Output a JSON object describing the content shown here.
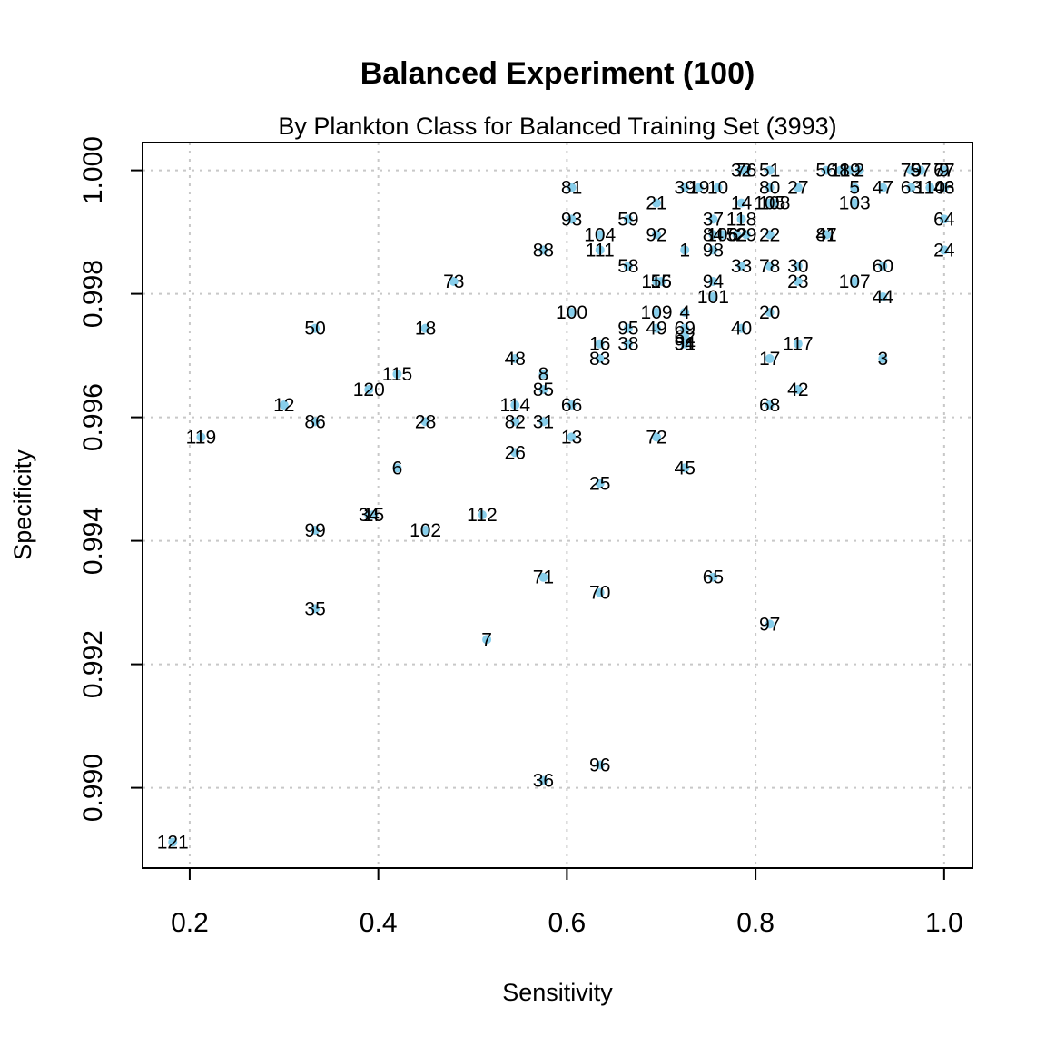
{
  "chart_data": {
    "type": "scatter",
    "title": "Balanced Experiment (100)",
    "subtitle": "By Plankton Class for Balanced Training Set (3993)",
    "xlabel": "Sensitivity",
    "ylabel": "Specificity",
    "xlim": [
      0.15,
      1.03
    ],
    "ylim": [
      0.9887,
      1.00045
    ],
    "xticks": [
      0.2,
      0.4,
      0.6,
      0.8,
      1.0
    ],
    "xtick_labels": [
      "0.2",
      "0.4",
      "0.6",
      "0.8",
      "1.0"
    ],
    "yticks": [
      0.99,
      0.992,
      0.994,
      0.996,
      0.998,
      1.0
    ],
    "ytick_labels": [
      "0.990",
      "0.992",
      "0.994",
      "0.996",
      "0.998",
      "1.000"
    ],
    "grid": true,
    "point_color": "#87ceeb",
    "points": [
      {
        "label": "121",
        "x": 0.182,
        "y": 0.98912
      },
      {
        "label": "119",
        "x": 0.212,
        "y": 0.99568
      },
      {
        "label": "12",
        "x": 0.3,
        "y": 0.9962
      },
      {
        "label": "50",
        "x": 0.333,
        "y": 0.99744
      },
      {
        "label": "86",
        "x": 0.333,
        "y": 0.99593
      },
      {
        "label": "99",
        "x": 0.333,
        "y": 0.99417
      },
      {
        "label": "35",
        "x": 0.333,
        "y": 0.9929
      },
      {
        "label": "120",
        "x": 0.39,
        "y": 0.99645
      },
      {
        "label": "34",
        "x": 0.39,
        "y": 0.99442
      },
      {
        "label": "15",
        "x": 0.395,
        "y": 0.99442
      },
      {
        "label": "115",
        "x": 0.42,
        "y": 0.9967
      },
      {
        "label": "6",
        "x": 0.42,
        "y": 0.99518
      },
      {
        "label": "18",
        "x": 0.45,
        "y": 0.99744
      },
      {
        "label": "28",
        "x": 0.45,
        "y": 0.99593
      },
      {
        "label": "102",
        "x": 0.45,
        "y": 0.99417
      },
      {
        "label": "73",
        "x": 0.48,
        "y": 0.9982
      },
      {
        "label": "112",
        "x": 0.51,
        "y": 0.99442
      },
      {
        "label": "7",
        "x": 0.515,
        "y": 0.9924
      },
      {
        "label": "48",
        "x": 0.545,
        "y": 0.99695
      },
      {
        "label": "114",
        "x": 0.545,
        "y": 0.9962
      },
      {
        "label": "82",
        "x": 0.545,
        "y": 0.99593
      },
      {
        "label": "26",
        "x": 0.545,
        "y": 0.99543
      },
      {
        "label": "88",
        "x": 0.575,
        "y": 0.99871
      },
      {
        "label": "8",
        "x": 0.575,
        "y": 0.9967
      },
      {
        "label": "85",
        "x": 0.575,
        "y": 0.99645
      },
      {
        "label": "31",
        "x": 0.575,
        "y": 0.99593
      },
      {
        "label": "71",
        "x": 0.575,
        "y": 0.99341
      },
      {
        "label": "36",
        "x": 0.575,
        "y": 0.99012
      },
      {
        "label": "81",
        "x": 0.605,
        "y": 0.99972
      },
      {
        "label": "93",
        "x": 0.605,
        "y": 0.99921
      },
      {
        "label": "100",
        "x": 0.605,
        "y": 0.9977
      },
      {
        "label": "66",
        "x": 0.605,
        "y": 0.9962
      },
      {
        "label": "13",
        "x": 0.605,
        "y": 0.99568
      },
      {
        "label": "104",
        "x": 0.635,
        "y": 0.99896
      },
      {
        "label": "111",
        "x": 0.635,
        "y": 0.99871
      },
      {
        "label": "16",
        "x": 0.635,
        "y": 0.99719
      },
      {
        "label": "83",
        "x": 0.635,
        "y": 0.99695
      },
      {
        "label": "25",
        "x": 0.635,
        "y": 0.99493
      },
      {
        "label": "70",
        "x": 0.635,
        "y": 0.99316
      },
      {
        "label": "96",
        "x": 0.635,
        "y": 0.99037
      },
      {
        "label": "59",
        "x": 0.665,
        "y": 0.99921
      },
      {
        "label": "58",
        "x": 0.665,
        "y": 0.99845
      },
      {
        "label": "95",
        "x": 0.665,
        "y": 0.99744
      },
      {
        "label": "38",
        "x": 0.665,
        "y": 0.99719
      },
      {
        "label": "21",
        "x": 0.695,
        "y": 0.99947
      },
      {
        "label": "92",
        "x": 0.695,
        "y": 0.99896
      },
      {
        "label": "116",
        "x": 0.695,
        "y": 0.9982
      },
      {
        "label": "55",
        "x": 0.7,
        "y": 0.9982
      },
      {
        "label": "109",
        "x": 0.695,
        "y": 0.9977
      },
      {
        "label": "49",
        "x": 0.695,
        "y": 0.99744
      },
      {
        "label": "72",
        "x": 0.695,
        "y": 0.99568
      },
      {
        "label": "1",
        "x": 0.725,
        "y": 0.99871
      },
      {
        "label": "4",
        "x": 0.725,
        "y": 0.9977
      },
      {
        "label": "69",
        "x": 0.725,
        "y": 0.99744
      },
      {
        "label": "62",
        "x": 0.725,
        "y": 0.9973
      },
      {
        "label": "54",
        "x": 0.725,
        "y": 0.99719
      },
      {
        "label": "91",
        "x": 0.725,
        "y": 0.99719
      },
      {
        "label": "45",
        "x": 0.725,
        "y": 0.99518
      },
      {
        "label": "39",
        "x": 0.725,
        "y": 0.99972
      },
      {
        "label": "19",
        "x": 0.74,
        "y": 0.99972
      },
      {
        "label": "10",
        "x": 0.76,
        "y": 0.99972
      },
      {
        "label": "37",
        "x": 0.755,
        "y": 0.99921
      },
      {
        "label": "84",
        "x": 0.755,
        "y": 0.99896
      },
      {
        "label": "98",
        "x": 0.755,
        "y": 0.99871
      },
      {
        "label": "94",
        "x": 0.755,
        "y": 0.9982
      },
      {
        "label": "101",
        "x": 0.755,
        "y": 0.99795
      },
      {
        "label": "65",
        "x": 0.755,
        "y": 0.99341
      },
      {
        "label": "106",
        "x": 0.765,
        "y": 0.99896
      },
      {
        "label": "118",
        "x": 0.785,
        "y": 0.99921
      },
      {
        "label": "52",
        "x": 0.78,
        "y": 0.99896
      },
      {
        "label": "29",
        "x": 0.79,
        "y": 0.99896
      },
      {
        "label": "33",
        "x": 0.785,
        "y": 0.99845
      },
      {
        "label": "40",
        "x": 0.785,
        "y": 0.99744
      },
      {
        "label": "32",
        "x": 0.785,
        "y": 1.0
      },
      {
        "label": "76",
        "x": 0.79,
        "y": 1.0
      },
      {
        "label": "14",
        "x": 0.785,
        "y": 0.99947
      },
      {
        "label": "51",
        "x": 0.815,
        "y": 1.0
      },
      {
        "label": "80",
        "x": 0.815,
        "y": 0.99972
      },
      {
        "label": "105",
        "x": 0.815,
        "y": 0.99947
      },
      {
        "label": "108",
        "x": 0.82,
        "y": 0.99947
      },
      {
        "label": "22",
        "x": 0.815,
        "y": 0.99896
      },
      {
        "label": "78",
        "x": 0.815,
        "y": 0.99845
      },
      {
        "label": "20",
        "x": 0.815,
        "y": 0.9977
      },
      {
        "label": "17",
        "x": 0.815,
        "y": 0.99695
      },
      {
        "label": "68",
        "x": 0.815,
        "y": 0.9962
      },
      {
        "label": "97",
        "x": 0.815,
        "y": 0.99265
      },
      {
        "label": "27",
        "x": 0.845,
        "y": 0.99972
      },
      {
        "label": "30",
        "x": 0.845,
        "y": 0.99845
      },
      {
        "label": "23",
        "x": 0.845,
        "y": 0.9982
      },
      {
        "label": "117",
        "x": 0.845,
        "y": 0.99719
      },
      {
        "label": "42",
        "x": 0.845,
        "y": 0.99645
      },
      {
        "label": "87",
        "x": 0.875,
        "y": 0.99896
      },
      {
        "label": "41",
        "x": 0.875,
        "y": 0.99896
      },
      {
        "label": "56",
        "x": 0.875,
        "y": 1.0
      },
      {
        "label": "11",
        "x": 0.89,
        "y": 1.0
      },
      {
        "label": "89",
        "x": 0.9,
        "y": 1.0
      },
      {
        "label": "2",
        "x": 0.91,
        "y": 1.0
      },
      {
        "label": "5",
        "x": 0.905,
        "y": 0.99972
      },
      {
        "label": "103",
        "x": 0.905,
        "y": 0.99947
      },
      {
        "label": "107",
        "x": 0.905,
        "y": 0.9982
      },
      {
        "label": "47",
        "x": 0.935,
        "y": 0.99972
      },
      {
        "label": "60",
        "x": 0.935,
        "y": 0.99845
      },
      {
        "label": "44",
        "x": 0.935,
        "y": 0.99795
      },
      {
        "label": "3",
        "x": 0.935,
        "y": 0.99695
      },
      {
        "label": "79",
        "x": 0.965,
        "y": 1.0
      },
      {
        "label": "57",
        "x": 0.975,
        "y": 1.0
      },
      {
        "label": "63",
        "x": 0.965,
        "y": 0.99972
      },
      {
        "label": "110",
        "x": 0.985,
        "y": 0.99972
      },
      {
        "label": "67",
        "x": 1.0,
        "y": 1.0
      },
      {
        "label": "77",
        "x": 1.0,
        "y": 1.0
      },
      {
        "label": "9",
        "x": 1.0,
        "y": 1.0
      },
      {
        "label": "46",
        "x": 1.0,
        "y": 0.99972
      },
      {
        "label": "43",
        "x": 1.0,
        "y": 0.99972
      },
      {
        "label": "64",
        "x": 1.0,
        "y": 0.99921
      },
      {
        "label": "24",
        "x": 1.0,
        "y": 0.99871
      }
    ]
  }
}
